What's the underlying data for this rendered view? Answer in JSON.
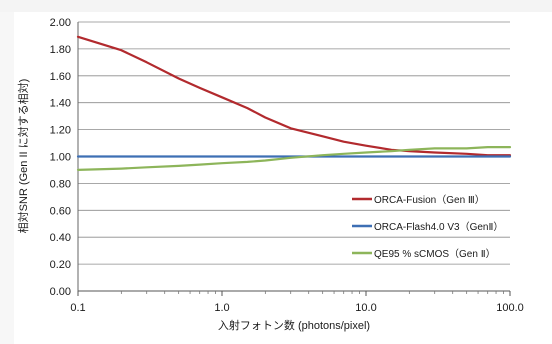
{
  "chart_data": {
    "type": "line",
    "xlabel": "入射フォトン数 (photons/pixel)",
    "ylabel": "相対SNR (Gen II に対する相対)",
    "x_scale": "log",
    "xlim": [
      0.1,
      100.0
    ],
    "ylim": [
      0.0,
      2.0
    ],
    "x_ticks": [
      "0.1",
      "1.0",
      "10.0",
      "100.0"
    ],
    "y_ticks": [
      "0.00",
      "0.20",
      "0.40",
      "0.60",
      "0.80",
      "1.00",
      "1.20",
      "1.40",
      "1.60",
      "1.80",
      "2.00"
    ],
    "grid": "horizontal",
    "legend_position": "right",
    "series": [
      {
        "name": "ORCA-Fusion（Gen Ⅲ）",
        "color": "#b22a2e",
        "x": [
          0.1,
          0.2,
          0.3,
          0.5,
          0.7,
          1.0,
          1.5,
          2,
          3,
          5,
          7,
          10,
          15,
          20,
          30,
          50,
          70,
          100
        ],
        "y": [
          1.89,
          1.79,
          1.7,
          1.58,
          1.51,
          1.44,
          1.36,
          1.29,
          1.21,
          1.15,
          1.11,
          1.08,
          1.05,
          1.04,
          1.03,
          1.02,
          1.01,
          1.01
        ]
      },
      {
        "name": "ORCA-Flash4.0 V3（GenⅡ）",
        "color": "#3d6fb4",
        "x": [
          0.1,
          100.0
        ],
        "y": [
          1.0,
          1.0
        ]
      },
      {
        "name": "QE95 % sCMOS（Gen Ⅱ）",
        "color": "#8db55a",
        "x": [
          0.1,
          0.2,
          0.3,
          0.5,
          0.7,
          1.0,
          1.5,
          2,
          3,
          5,
          7,
          10,
          15,
          20,
          30,
          50,
          70,
          100
        ],
        "y": [
          0.9,
          0.91,
          0.92,
          0.93,
          0.94,
          0.95,
          0.96,
          0.97,
          0.99,
          1.01,
          1.02,
          1.03,
          1.04,
          1.05,
          1.06,
          1.06,
          1.07,
          1.07
        ]
      }
    ]
  }
}
